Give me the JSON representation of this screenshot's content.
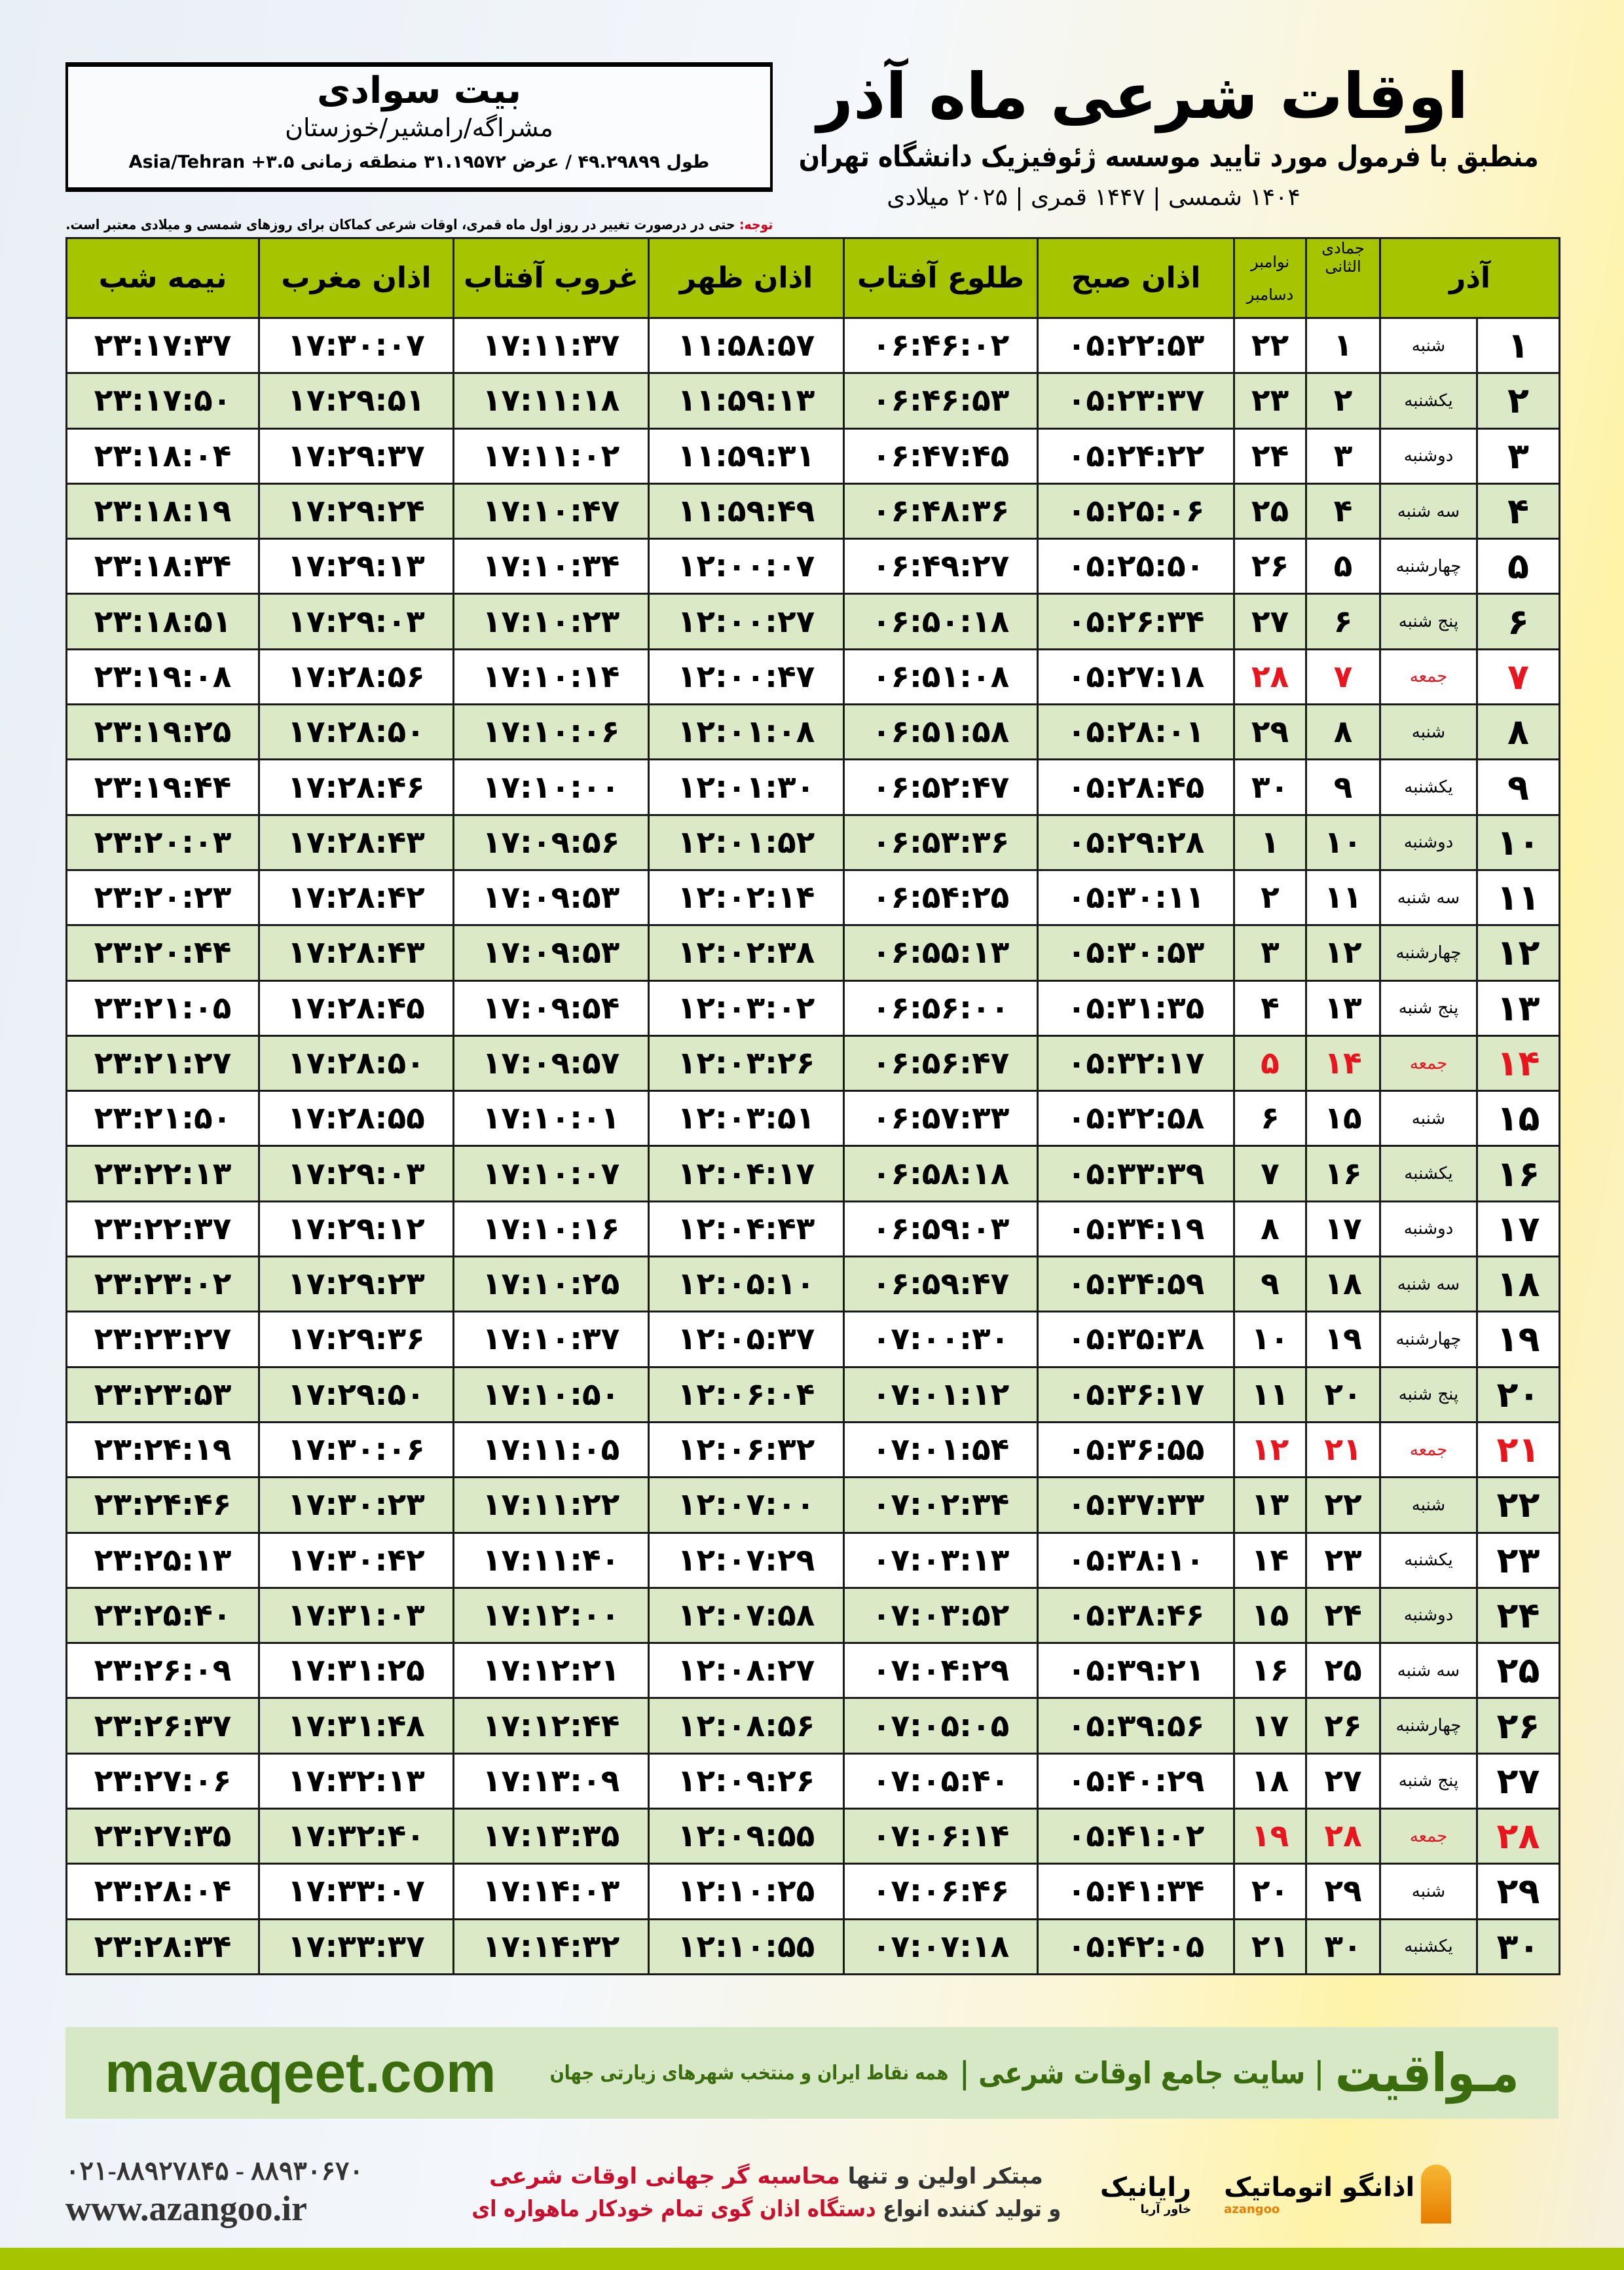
{
  "info": {
    "city": "بیت سوادی",
    "location": "مشراگه/رامشیر/خوزستان",
    "coords": "طول ۴۹.۲۹۸۹۹ / عرض ۳۱.۱۹۵۷۲ منطقه زمانی ۳.۵+ Asia/Tehran"
  },
  "header": {
    "title": "اوقات شرعی ماه آذر",
    "subtitle": "منطبق با فرمول مورد تایید موسسه ژئوفیزیک دانشگاه تهران",
    "dates": "۱۴۰۴ شمسی | ۱۴۴۷ قمری | ۲۰۲۵ میلادی"
  },
  "note": {
    "label": "توجه:",
    "text": " حتی در درصورت تغییر در روز اول ماه قمری، اوقات شرعی کماکان برای روزهای شمسی و میلادی معتبر است."
  },
  "columns": {
    "month": "آذر",
    "hijri": "جمادی الثانی",
    "greg1": "نوامبر",
    "greg2": "دسامبر",
    "fajr": "اذان صبح",
    "sunrise": "طلوع آفتاب",
    "dhuhr": "اذان ظهر",
    "sunset": "غروب آفتاب",
    "maghrib": "اذان مغرب",
    "midnight": "نیمه شب"
  },
  "colors": {
    "header": "#a6c400",
    "row_alt": "#dbe9c6",
    "friday": "#e8141e"
  },
  "rows": [
    [
      "۱",
      "شنبه",
      "۱",
      "۲۲",
      "۰۵:۲۲:۵۳",
      "۰۶:۴۶:۰۲",
      "۱۱:۵۸:۵۷",
      "۱۷:۱۱:۳۷",
      "۱۷:۳۰:۰۷",
      "۲۳:۱۷:۳۷"
    ],
    [
      "۲",
      "یکشنبه",
      "۲",
      "۲۳",
      "۰۵:۲۳:۳۷",
      "۰۶:۴۶:۵۳",
      "۱۱:۵۹:۱۳",
      "۱۷:۱۱:۱۸",
      "۱۷:۲۹:۵۱",
      "۲۳:۱۷:۵۰"
    ],
    [
      "۳",
      "دوشنبه",
      "۳",
      "۲۴",
      "۰۵:۲۴:۲۲",
      "۰۶:۴۷:۴۵",
      "۱۱:۵۹:۳۱",
      "۱۷:۱۱:۰۲",
      "۱۷:۲۹:۳۷",
      "۲۳:۱۸:۰۴"
    ],
    [
      "۴",
      "سه شنبه",
      "۴",
      "۲۵",
      "۰۵:۲۵:۰۶",
      "۰۶:۴۸:۳۶",
      "۱۱:۵۹:۴۹",
      "۱۷:۱۰:۴۷",
      "۱۷:۲۹:۲۴",
      "۲۳:۱۸:۱۹"
    ],
    [
      "۵",
      "چهارشنبه",
      "۵",
      "۲۶",
      "۰۵:۲۵:۵۰",
      "۰۶:۴۹:۲۷",
      "۱۲:۰۰:۰۷",
      "۱۷:۱۰:۳۴",
      "۱۷:۲۹:۱۳",
      "۲۳:۱۸:۳۴"
    ],
    [
      "۶",
      "پنج شنبه",
      "۶",
      "۲۷",
      "۰۵:۲۶:۳۴",
      "۰۶:۵۰:۱۸",
      "۱۲:۰۰:۲۷",
      "۱۷:۱۰:۲۳",
      "۱۷:۲۹:۰۳",
      "۲۳:۱۸:۵۱"
    ],
    [
      "۷",
      "جمعه",
      "۷",
      "۲۸",
      "۰۵:۲۷:۱۸",
      "۰۶:۵۱:۰۸",
      "۱۲:۰۰:۴۷",
      "۱۷:۱۰:۱۴",
      "۱۷:۲۸:۵۶",
      "۲۳:۱۹:۰۸"
    ],
    [
      "۸",
      "شنبه",
      "۸",
      "۲۹",
      "۰۵:۲۸:۰۱",
      "۰۶:۵۱:۵۸",
      "۱۲:۰۱:۰۸",
      "۱۷:۱۰:۰۶",
      "۱۷:۲۸:۵۰",
      "۲۳:۱۹:۲۵"
    ],
    [
      "۹",
      "یکشنبه",
      "۹",
      "۳۰",
      "۰۵:۲۸:۴۵",
      "۰۶:۵۲:۴۷",
      "۱۲:۰۱:۳۰",
      "۱۷:۱۰:۰۰",
      "۱۷:۲۸:۴۶",
      "۲۳:۱۹:۴۴"
    ],
    [
      "۱۰",
      "دوشنبه",
      "۱۰",
      "۱",
      "۰۵:۲۹:۲۸",
      "۰۶:۵۳:۳۶",
      "۱۲:۰۱:۵۲",
      "۱۷:۰۹:۵۶",
      "۱۷:۲۸:۴۳",
      "۲۳:۲۰:۰۳"
    ],
    [
      "۱۱",
      "سه شنبه",
      "۱۱",
      "۲",
      "۰۵:۳۰:۱۱",
      "۰۶:۵۴:۲۵",
      "۱۲:۰۲:۱۴",
      "۱۷:۰۹:۵۳",
      "۱۷:۲۸:۴۲",
      "۲۳:۲۰:۲۳"
    ],
    [
      "۱۲",
      "چهارشنبه",
      "۱۲",
      "۳",
      "۰۵:۳۰:۵۳",
      "۰۶:۵۵:۱۳",
      "۱۲:۰۲:۳۸",
      "۱۷:۰۹:۵۳",
      "۱۷:۲۸:۴۳",
      "۲۳:۲۰:۴۴"
    ],
    [
      "۱۳",
      "پنج شنبه",
      "۱۳",
      "۴",
      "۰۵:۳۱:۳۵",
      "۰۶:۵۶:۰۰",
      "۱۲:۰۳:۰۲",
      "۱۷:۰۹:۵۴",
      "۱۷:۲۸:۴۵",
      "۲۳:۲۱:۰۵"
    ],
    [
      "۱۴",
      "جمعه",
      "۱۴",
      "۵",
      "۰۵:۳۲:۱۷",
      "۰۶:۵۶:۴۷",
      "۱۲:۰۳:۲۶",
      "۱۷:۰۹:۵۷",
      "۱۷:۲۸:۵۰",
      "۲۳:۲۱:۲۷"
    ],
    [
      "۱۵",
      "شنبه",
      "۱۵",
      "۶",
      "۰۵:۳۲:۵۸",
      "۰۶:۵۷:۳۳",
      "۱۲:۰۳:۵۱",
      "۱۷:۱۰:۰۱",
      "۱۷:۲۸:۵۵",
      "۲۳:۲۱:۵۰"
    ],
    [
      "۱۶",
      "یکشنبه",
      "۱۶",
      "۷",
      "۰۵:۳۳:۳۹",
      "۰۶:۵۸:۱۸",
      "۱۲:۰۴:۱۷",
      "۱۷:۱۰:۰۷",
      "۱۷:۲۹:۰۳",
      "۲۳:۲۲:۱۳"
    ],
    [
      "۱۷",
      "دوشنبه",
      "۱۷",
      "۸",
      "۰۵:۳۴:۱۹",
      "۰۶:۵۹:۰۳",
      "۱۲:۰۴:۴۳",
      "۱۷:۱۰:۱۶",
      "۱۷:۲۹:۱۲",
      "۲۳:۲۲:۳۷"
    ],
    [
      "۱۸",
      "سه شنبه",
      "۱۸",
      "۹",
      "۰۵:۳۴:۵۹",
      "۰۶:۵۹:۴۷",
      "۱۲:۰۵:۱۰",
      "۱۷:۱۰:۲۵",
      "۱۷:۲۹:۲۳",
      "۲۳:۲۳:۰۲"
    ],
    [
      "۱۹",
      "چهارشنبه",
      "۱۹",
      "۱۰",
      "۰۵:۳۵:۳۸",
      "۰۷:۰۰:۳۰",
      "۱۲:۰۵:۳۷",
      "۱۷:۱۰:۳۷",
      "۱۷:۲۹:۳۶",
      "۲۳:۲۳:۲۷"
    ],
    [
      "۲۰",
      "پنج شنبه",
      "۲۰",
      "۱۱",
      "۰۵:۳۶:۱۷",
      "۰۷:۰۱:۱۲",
      "۱۲:۰۶:۰۴",
      "۱۷:۱۰:۵۰",
      "۱۷:۲۹:۵۰",
      "۲۳:۲۳:۵۳"
    ],
    [
      "۲۱",
      "جمعه",
      "۲۱",
      "۱۲",
      "۰۵:۳۶:۵۵",
      "۰۷:۰۱:۵۴",
      "۱۲:۰۶:۳۲",
      "۱۷:۱۱:۰۵",
      "۱۷:۳۰:۰۶",
      "۲۳:۲۴:۱۹"
    ],
    [
      "۲۲",
      "شنبه",
      "۲۲",
      "۱۳",
      "۰۵:۳۷:۳۳",
      "۰۷:۰۲:۳۴",
      "۱۲:۰۷:۰۰",
      "۱۷:۱۱:۲۲",
      "۱۷:۳۰:۲۳",
      "۲۳:۲۴:۴۶"
    ],
    [
      "۲۳",
      "یکشنبه",
      "۲۳",
      "۱۴",
      "۰۵:۳۸:۱۰",
      "۰۷:۰۳:۱۳",
      "۱۲:۰۷:۲۹",
      "۱۷:۱۱:۴۰",
      "۱۷:۳۰:۴۲",
      "۲۳:۲۵:۱۳"
    ],
    [
      "۲۴",
      "دوشنبه",
      "۲۴",
      "۱۵",
      "۰۵:۳۸:۴۶",
      "۰۷:۰۳:۵۲",
      "۱۲:۰۷:۵۸",
      "۱۷:۱۲:۰۰",
      "۱۷:۳۱:۰۳",
      "۲۳:۲۵:۴۰"
    ],
    [
      "۲۵",
      "سه شنبه",
      "۲۵",
      "۱۶",
      "۰۵:۳۹:۲۱",
      "۰۷:۰۴:۲۹",
      "۱۲:۰۸:۲۷",
      "۱۷:۱۲:۲۱",
      "۱۷:۳۱:۲۵",
      "۲۳:۲۶:۰۹"
    ],
    [
      "۲۶",
      "چهارشنبه",
      "۲۶",
      "۱۷",
      "۰۵:۳۹:۵۶",
      "۰۷:۰۵:۰۵",
      "۱۲:۰۸:۵۶",
      "۱۷:۱۲:۴۴",
      "۱۷:۳۱:۴۸",
      "۲۳:۲۶:۳۷"
    ],
    [
      "۲۷",
      "پنج شنبه",
      "۲۷",
      "۱۸",
      "۰۵:۴۰:۲۹",
      "۰۷:۰۵:۴۰",
      "۱۲:۰۹:۲۶",
      "۱۷:۱۳:۰۹",
      "۱۷:۳۲:۱۳",
      "۲۳:۲۷:۰۶"
    ],
    [
      "۲۸",
      "جمعه",
      "۲۸",
      "۱۹",
      "۰۵:۴۱:۰۲",
      "۰۷:۰۶:۱۴",
      "۱۲:۰۹:۵۵",
      "۱۷:۱۳:۳۵",
      "۱۷:۳۲:۴۰",
      "۲۳:۲۷:۳۵"
    ],
    [
      "۲۹",
      "شنبه",
      "۲۹",
      "۲۰",
      "۰۵:۴۱:۳۴",
      "۰۷:۰۶:۴۶",
      "۱۲:۱۰:۲۵",
      "۱۷:۱۴:۰۳",
      "۱۷:۳۳:۰۷",
      "۲۳:۲۸:۰۴"
    ],
    [
      "۳۰",
      "یکشنبه",
      "۳۰",
      "۲۱",
      "۰۵:۴۲:۰۵",
      "۰۷:۰۷:۱۸",
      "۱۲:۱۰:۵۵",
      "۱۷:۱۴:۳۲",
      "۱۷:۳۳:۳۷",
      "۲۳:۲۸:۳۴"
    ]
  ],
  "friday_label": "جمعه",
  "footer": {
    "site": "mavaqeet.com",
    "brand": "مـواقیت",
    "tagline": "| سایت جامع اوقات شرعی |",
    "sub": "همه نقاط ایران و منتخب شهرهای زیارتی جهان"
  },
  "bottom": {
    "phone": "۰۲۱-۸۸۹۲۷۸۴۵ - ۸۸۹۳۰۶۷۰",
    "web": "www.azangoo.ir",
    "line1a": "مبتکر اولین و تنها ",
    "line1b": "محاسبه گر جهانی اوقات شرعی",
    "line2a": "و تولید کننده انواع ",
    "line2b": "دستگاه اذان گوی تمام خودکار ماهواره ای",
    "logo_rayanik": "رایانیک",
    "logo_rayanik_sub": "خاور آریا",
    "logo_azangoo": "اذانگو اتوماتیک",
    "logo_azangoo_en": "azangoo"
  }
}
